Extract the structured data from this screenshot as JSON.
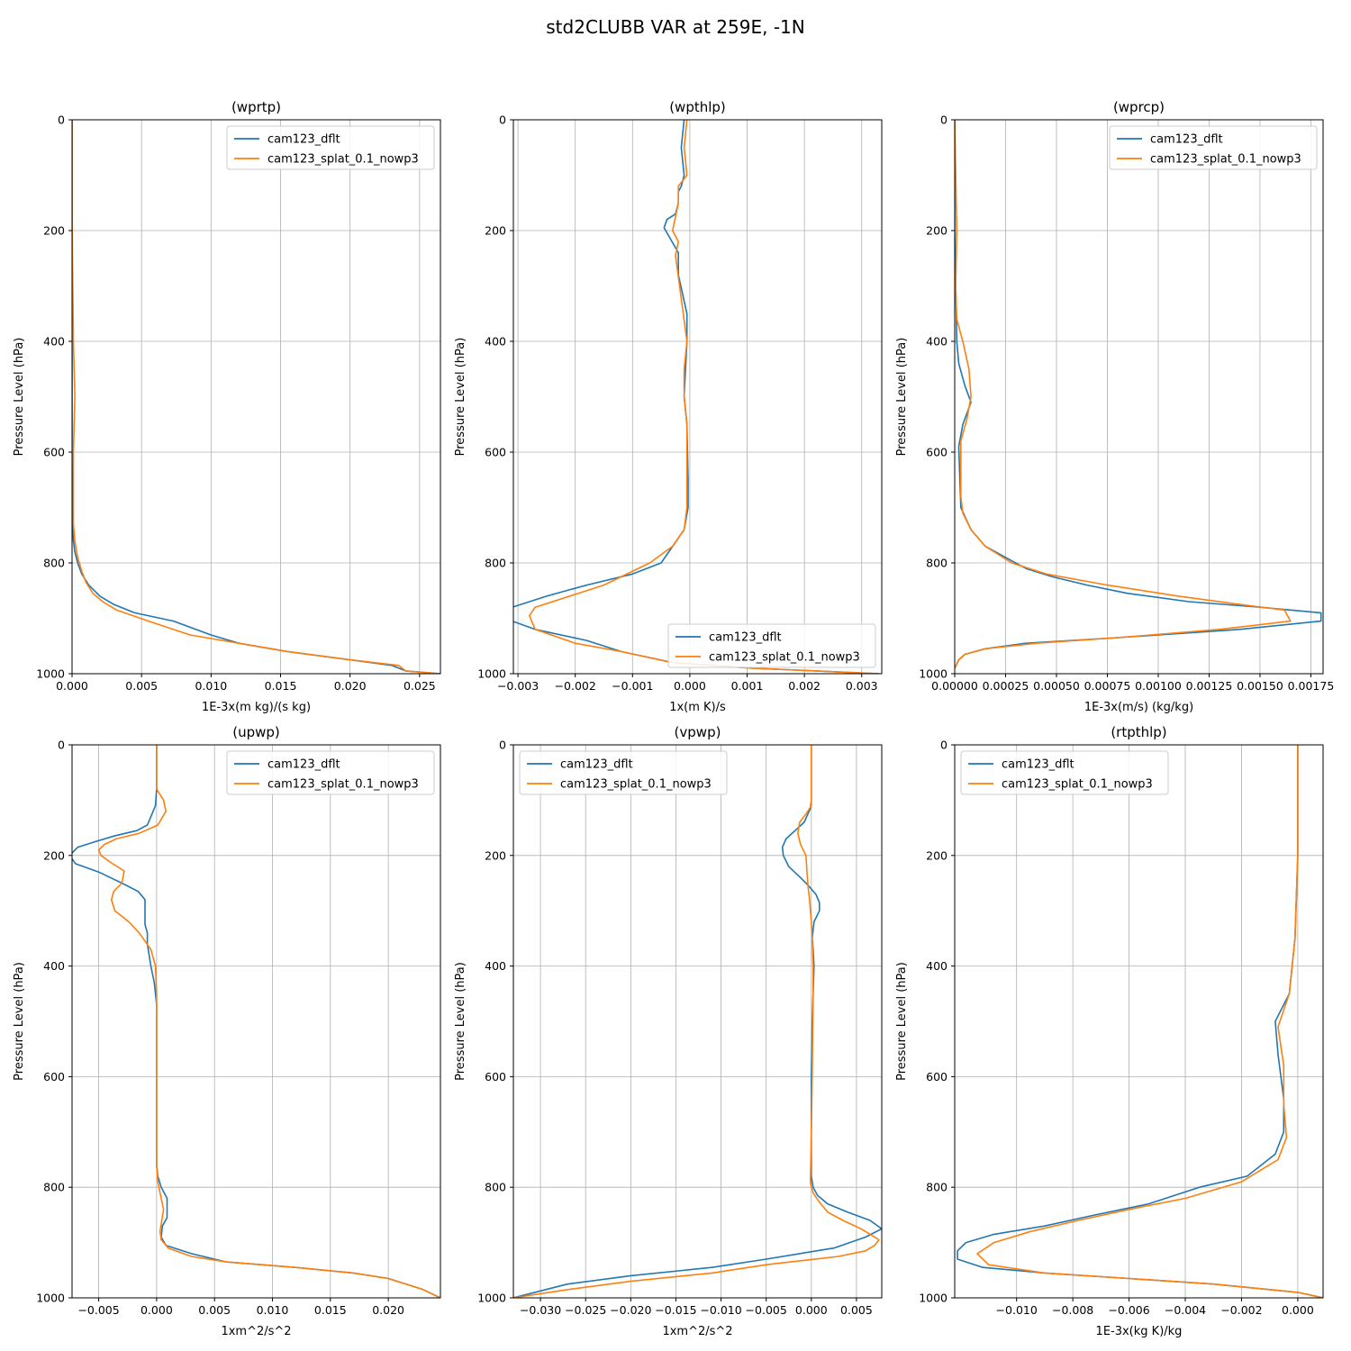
{
  "suptitle": "std2CLUBB VAR at 259E, -1N",
  "colors": {
    "cam123_dflt": "#1f77b4",
    "cam123_splat_0.1_nowp3": "#ff7f0e",
    "grid": "#b0b0b0"
  },
  "chart_data": [
    {
      "type": "line",
      "title": "(wprtp)",
      "xlabel": "1E-3x(m kg)/(s kg)",
      "ylabel": "Pressure Level (hPa)",
      "xlim": [
        0,
        0.0265
      ],
      "ylim": [
        1000,
        0
      ],
      "xticks": [
        0,
        0.005,
        0.01,
        0.015,
        0.02,
        0.025
      ],
      "xticklabels": [
        "0.000",
        "0.005",
        "0.010",
        "0.015",
        "0.020",
        "0.025"
      ],
      "yticks": [
        0,
        200,
        400,
        600,
        800,
        1000
      ],
      "yticklabels": [
        "0",
        "200",
        "400",
        "600",
        "800",
        "1000"
      ],
      "grid": true,
      "legend": "upper right",
      "series": [
        {
          "name": "cam123_dflt",
          "x": [
            0,
            0,
            0,
            0,
            5e-05,
            0.0001,
            0.0002,
            0.0004,
            0.0007,
            0.0012,
            0.002,
            0.003,
            0.0045,
            0.0073,
            0.01,
            0.012,
            0.0155,
            0.02,
            0.023,
            0.024,
            0.0265
          ],
          "y": [
            0,
            200,
            400,
            600,
            740,
            760,
            780,
            800,
            820,
            840,
            860,
            875,
            890,
            905,
            930,
            945,
            960,
            975,
            985,
            995,
            1000
          ]
        },
        {
          "name": "cam123_splat_0.1_nowp3",
          "x": [
            0,
            0,
            0.0001,
            0.0002,
            0.0001,
            0.0001,
            0.0002,
            0.0004,
            0.0007,
            0.001,
            0.0015,
            0.0022,
            0.0032,
            0.0055,
            0.0085,
            0.012,
            0.0155,
            0.02,
            0.0235,
            0.024,
            0.0265
          ],
          "y": [
            0,
            180,
            400,
            500,
            600,
            730,
            760,
            790,
            815,
            835,
            855,
            870,
            885,
            905,
            930,
            945,
            960,
            975,
            985,
            995,
            1000
          ]
        }
      ]
    },
    {
      "type": "line",
      "title": "(wpthlp)",
      "xlabel": "1x(m K)/s",
      "ylabel": "Pressure Level (hPa)",
      "xlim": [
        -0.00308,
        0.00335
      ],
      "ylim": [
        1000,
        0
      ],
      "xticks": [
        -0.003,
        -0.002,
        -0.001,
        0,
        0.001,
        0.002,
        0.003
      ],
      "xticklabels": [
        "−0.003",
        "−0.002",
        "−0.001",
        "0.000",
        "0.001",
        "0.002",
        "0.003"
      ],
      "yticks": [
        0,
        200,
        400,
        600,
        800,
        1000
      ],
      "yticklabels": [
        "0",
        "200",
        "400",
        "600",
        "800",
        "1000"
      ],
      "grid": true,
      "legend": "lower right",
      "series": [
        {
          "name": "cam123_dflt",
          "x": [
            -0.0001,
            -0.00015,
            -0.0001,
            -0.00015,
            -0.0002,
            -0.0002,
            -0.00025,
            -0.0004,
            -0.00045,
            -0.0002,
            -0.0002,
            -5e-05,
            -5e-05,
            -0.0001,
            -5e-05,
            -3e-05,
            -3e-05,
            -0.0001,
            -0.0003,
            -0.0005,
            -0.001,
            -0.0018,
            -0.0025,
            -0.0031,
            -0.0031,
            -0.0027,
            -0.0018,
            -0.0012,
            -0.0003,
            0.0011,
            0.0033
          ],
          "y": [
            0,
            50,
            100,
            120,
            130,
            150,
            170,
            180,
            195,
            240,
            280,
            350,
            400,
            500,
            550,
            650,
            700,
            740,
            770,
            800,
            820,
            840,
            860,
            880,
            905,
            920,
            940,
            960,
            980,
            990,
            1000
          ]
        },
        {
          "name": "cam123_splat_0.1_nowp3",
          "x": [
            -5e-05,
            -0.0001,
            -5e-05,
            -0.0002,
            -0.0002,
            -0.0003,
            -0.0002,
            -0.00025,
            -5e-05,
            -0.0001,
            -0.0001,
            -5e-05,
            -5e-05,
            -5e-05,
            -0.0001,
            -0.0003,
            -0.0007,
            -0.0015,
            -0.0027,
            -0.0028,
            -0.0027,
            -0.002,
            -0.0012,
            -0.0003,
            0.0011,
            0.0033
          ],
          "y": [
            0,
            50,
            100,
            120,
            150,
            200,
            220,
            245,
            400,
            450,
            500,
            550,
            650,
            700,
            740,
            770,
            800,
            840,
            880,
            895,
            920,
            945,
            960,
            980,
            990,
            1000
          ]
        }
      ]
    },
    {
      "type": "line",
      "title": "(wprcp)",
      "xlabel": "1E-3x(m/s) (kg/kg)",
      "ylabel": "Pressure Level (hPa)",
      "xlim": [
        0,
        0.00181
      ],
      "ylim": [
        1000,
        0
      ],
      "xticks": [
        0,
        0.00025,
        0.0005,
        0.00075,
        0.001,
        0.00125,
        0.0015,
        0.00175
      ],
      "xticklabels": [
        "0.00000",
        "0.00025",
        "0.00050",
        "0.00075",
        "0.00100",
        "0.00125",
        "0.00150",
        "0.00175"
      ],
      "yticks": [
        0,
        200,
        400,
        600,
        800,
        1000
      ],
      "yticklabels": [
        "0",
        "200",
        "400",
        "600",
        "800",
        "1000"
      ],
      "grid": true,
      "legend": "upper right",
      "series": [
        {
          "name": "cam123_dflt",
          "x": [
            0,
            0,
            5e-06,
            1e-05,
            2e-05,
            5e-05,
            8e-05,
            4e-05,
            2e-05,
            3e-05,
            8e-05,
            0.00015,
            0.00025,
            0.00035,
            0.00048,
            0.00065,
            0.00085,
            0.00115,
            0.0015,
            0.0018,
            0.0018,
            0.0014,
            0.0008,
            0.00035,
            0.00015,
            5e-05,
            2e-05,
            0
          ],
          "y": [
            0,
            200,
            300,
            400,
            440,
            480,
            510,
            550,
            590,
            700,
            740,
            770,
            790,
            810,
            825,
            840,
            855,
            870,
            880,
            890,
            905,
            920,
            935,
            945,
            955,
            965,
            975,
            990
          ]
        },
        {
          "name": "cam123_splat_0.1_nowp3",
          "x": [
            0,
            1e-05,
            5e-06,
            1e-05,
            4e-05,
            7e-05,
            8e-05,
            6e-05,
            3e-05,
            3e-05,
            4e-05,
            8e-05,
            0.00015,
            0.00028,
            0.00045,
            0.00075,
            0.0011,
            0.0014,
            0.00162,
            0.00165,
            0.0013,
            0.0008,
            0.0004,
            0.00015,
            5e-05,
            2e-05,
            0
          ],
          "y": [
            0,
            200,
            300,
            360,
            400,
            450,
            500,
            540,
            580,
            680,
            710,
            740,
            770,
            800,
            820,
            840,
            860,
            875,
            885,
            905,
            920,
            935,
            945,
            955,
            965,
            975,
            990
          ]
        }
      ]
    },
    {
      "type": "line",
      "title": "(upwp)",
      "xlabel": "1xm^2/s^2",
      "ylabel": "Pressure Level (hPa)",
      "xlim": [
        -0.0073,
        0.0245
      ],
      "ylim": [
        1000,
        0
      ],
      "xticks": [
        -0.005,
        0,
        0.005,
        0.01,
        0.015,
        0.02
      ],
      "xticklabels": [
        "−0.005",
        "0.000",
        "0.005",
        "0.010",
        "0.015",
        "0.020"
      ],
      "yticks": [
        0,
        200,
        400,
        600,
        800,
        1000
      ],
      "yticklabels": [
        "0",
        "200",
        "400",
        "600",
        "800",
        "1000"
      ],
      "grid": true,
      "legend": "upper right",
      "series": [
        {
          "name": "cam123_dflt",
          "x": [
            0,
            0,
            -0.0001,
            -0.0005,
            -0.0008,
            -0.0017,
            -0.0037,
            -0.0053,
            -0.0068,
            -0.0075,
            -0.007,
            -0.005,
            -0.003,
            -0.0016,
            -0.001,
            -0.001,
            -0.0008,
            -0.0008,
            -0.0005,
            -0.0002,
            0,
            0,
            0,
            0.0001,
            0.0004,
            0.0009,
            0.0009,
            0.0005,
            0.0004,
            0.0008,
            0.003,
            0.006,
            0.012,
            0.017,
            0.02,
            0.023,
            0.0245
          ],
          "y": [
            0,
            80,
            110,
            130,
            145,
            155,
            165,
            175,
            185,
            200,
            215,
            230,
            250,
            265,
            280,
            325,
            340,
            360,
            400,
            430,
            470,
            600,
            760,
            780,
            800,
            820,
            855,
            870,
            890,
            905,
            920,
            935,
            945,
            955,
            965,
            985,
            1000
          ]
        },
        {
          "name": "cam123_splat_0.1_nowp3",
          "x": [
            0,
            0,
            0.0006,
            0.0008,
            0.0001,
            -0.0015,
            -0.0035,
            -0.0045,
            -0.005,
            -0.0048,
            -0.0038,
            -0.0028,
            -0.003,
            -0.0037,
            -0.0039,
            -0.0036,
            -0.0024,
            -0.0015,
            -0.0005,
            -0.0001,
            0,
            0,
            0,
            0.0001,
            0.0003,
            0.0006,
            0.0003,
            0.0004,
            0.001,
            0.003,
            0.006,
            0.012,
            0.017,
            0.02,
            0.023,
            0.0245
          ],
          "y": [
            0,
            80,
            100,
            120,
            145,
            160,
            170,
            180,
            190,
            200,
            215,
            228,
            250,
            265,
            280,
            300,
            320,
            340,
            370,
            400,
            450,
            600,
            760,
            790,
            810,
            840,
            880,
            895,
            910,
            925,
            935,
            945,
            955,
            965,
            985,
            1000
          ]
        }
      ]
    },
    {
      "type": "line",
      "title": "(vpwp)",
      "xlabel": "1xm^2/s^2",
      "ylabel": "Pressure Level (hPa)",
      "xlim": [
        -0.033,
        0.0078
      ],
      "ylim": [
        1000,
        0
      ],
      "xticks": [
        -0.03,
        -0.025,
        -0.02,
        -0.015,
        -0.01,
        -0.005,
        0,
        0.005
      ],
      "xticklabels": [
        "−0.030",
        "−0.025",
        "−0.020",
        "−0.015",
        "−0.010",
        "−0.005",
        "0.000",
        "0.005"
      ],
      "yticks": [
        0,
        200,
        400,
        600,
        800,
        1000
      ],
      "yticklabels": [
        "0",
        "200",
        "400",
        "600",
        "800",
        "1000"
      ],
      "grid": true,
      "legend": "upper left",
      "series": [
        {
          "name": "cam123_dflt",
          "x": [
            0,
            0,
            -0.0001,
            -0.0008,
            -0.0018,
            -0.0028,
            -0.0032,
            -0.0031,
            -0.0025,
            -0.0012,
            -0.0003,
            0.0005,
            0.0009,
            0.0009,
            0.0003,
            0.0001,
            0.0002,
            0.0003,
            0.0002,
            0.0001,
            0,
            0,
            0.0002,
            0.0007,
            0.0018,
            0.004,
            0.0065,
            0.0078,
            0.006,
            0.0025,
            -0.005,
            -0.011,
            -0.02,
            -0.027,
            -0.033
          ],
          "y": [
            0,
            100,
            115,
            140,
            155,
            170,
            185,
            200,
            220,
            240,
            255,
            270,
            285,
            300,
            320,
            350,
            370,
            400,
            450,
            500,
            600,
            780,
            800,
            815,
            830,
            845,
            860,
            875,
            890,
            910,
            930,
            945,
            960,
            975,
            1000
          ]
        },
        {
          "name": "cam123_splat_0.1_nowp3",
          "x": [
            0,
            0,
            -0.0006,
            -0.0013,
            -0.0015,
            -0.0012,
            -0.0006,
            -0.0005,
            -0.0004,
            -0.0002,
            0,
            0.0001,
            0.0002,
            0.0002,
            0.0001,
            0,
            -0.0001,
            0,
            0.0002,
            0.0008,
            0.0018,
            0.0035,
            0.0055,
            0.0065,
            0.0075,
            0.007,
            0.006,
            0.003,
            -0.005,
            -0.011,
            -0.02,
            -0.027,
            -0.033
          ],
          "y": [
            0,
            110,
            125,
            140,
            160,
            180,
            200,
            225,
            250,
            280,
            320,
            350,
            400,
            450,
            600,
            700,
            790,
            800,
            810,
            825,
            845,
            860,
            875,
            885,
            895,
            905,
            915,
            925,
            940,
            955,
            970,
            985,
            1000
          ]
        }
      ]
    },
    {
      "type": "line",
      "title": "(rtpthlp)",
      "xlabel": "1E-3x(kg K)/kg",
      "ylabel": "Pressure Level (hPa)",
      "xlim": [
        -0.0122,
        0.0009
      ],
      "ylim": [
        1000,
        0
      ],
      "xticks": [
        -0.01,
        -0.008,
        -0.006,
        -0.004,
        -0.002,
        0
      ],
      "xticklabels": [
        "−0.010",
        "−0.008",
        "−0.006",
        "−0.004",
        "−0.002",
        "0.000"
      ],
      "yticks": [
        0,
        200,
        400,
        600,
        800,
        1000
      ],
      "yticklabels": [
        "0",
        "200",
        "400",
        "600",
        "800",
        "1000"
      ],
      "grid": true,
      "legend": "upper left",
      "series": [
        {
          "name": "cam123_dflt",
          "x": [
            0,
            0,
            -0.0001,
            -0.0003,
            -0.0008,
            -0.0007,
            -0.0005,
            -0.0005,
            -0.0008,
            -0.0018,
            -0.0035,
            -0.0053,
            -0.0072,
            -0.009,
            -0.0108,
            -0.0118,
            -0.0121,
            -0.0121,
            -0.0112,
            -0.009,
            -0.006,
            -0.003,
            0,
            0.0009
          ],
          "y": [
            0,
            200,
            350,
            450,
            500,
            560,
            640,
            700,
            740,
            780,
            800,
            830,
            850,
            870,
            885,
            900,
            915,
            930,
            945,
            955,
            965,
            975,
            990,
            1000
          ]
        },
        {
          "name": "cam123_splat_0.1_nowp3",
          "x": [
            0,
            0,
            -0.0001,
            -0.0003,
            -0.0007,
            -0.0005,
            -0.0005,
            -0.0004,
            -0.0007,
            -0.002,
            -0.004,
            -0.006,
            -0.0078,
            -0.0095,
            -0.0108,
            -0.0114,
            -0.011,
            -0.009,
            -0.006,
            -0.003,
            0,
            0.0009
          ],
          "y": [
            0,
            200,
            350,
            450,
            510,
            580,
            650,
            710,
            750,
            790,
            820,
            840,
            860,
            880,
            900,
            920,
            940,
            955,
            965,
            975,
            990,
            1000
          ]
        }
      ]
    }
  ]
}
